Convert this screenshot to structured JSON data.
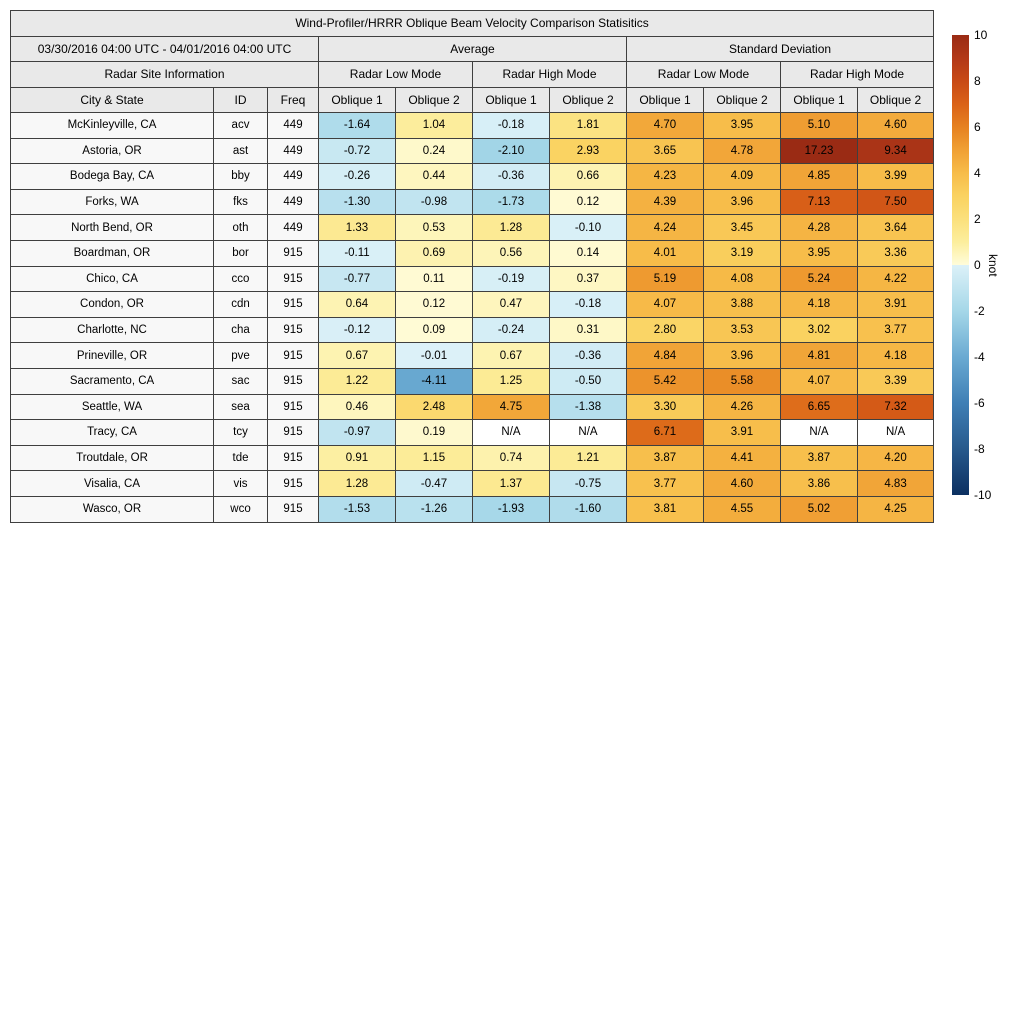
{
  "title": "Wind-Profiler/HRRR Oblique Beam Velocity Comparison Statisitics",
  "header": {
    "date_range": "03/30/2016 04:00 UTC - 04/01/2016 04:00 UTC",
    "avg_group": "Average",
    "std_group": "Standard Deviation",
    "site_info": "Radar Site Information",
    "mode_headers": [
      "Radar Low Mode",
      "Radar High Mode",
      "Radar Low Mode",
      "Radar High Mode"
    ],
    "col_headers": [
      "City & State",
      "ID",
      "Freq",
      "Oblique 1",
      "Oblique 2",
      "Oblique 1",
      "Oblique 2",
      "Oblique 1",
      "Oblique 2",
      "Oblique 1",
      "Oblique 2"
    ]
  },
  "colorbar": {
    "label": "knot",
    "min": -10,
    "max": 10,
    "ticks": [
      "10",
      "8",
      "6",
      "4",
      "2",
      "0",
      "-2",
      "-4",
      "-6",
      "-8",
      "-10"
    ],
    "stops": [
      {
        "v": -10,
        "c": "#0c3061"
      },
      {
        "v": -8,
        "c": "#27598c"
      },
      {
        "v": -6,
        "c": "#3f7fb5"
      },
      {
        "v": -4,
        "c": "#6aaad2"
      },
      {
        "v": -2,
        "c": "#a5d7e8"
      },
      {
        "v": -0.001,
        "c": "#dcf1f8"
      },
      {
        "v": 0,
        "c": "#fffcda"
      },
      {
        "v": 1,
        "c": "#fcee9d"
      },
      {
        "v": 2,
        "c": "#fbe07c"
      },
      {
        "v": 3,
        "c": "#fad260"
      },
      {
        "v": 4,
        "c": "#f7bc49"
      },
      {
        "v": 5,
        "c": "#f0a034"
      },
      {
        "v": 6,
        "c": "#e68120"
      },
      {
        "v": 7,
        "c": "#da6218"
      },
      {
        "v": 8,
        "c": "#c84a16"
      },
      {
        "v": 9,
        "c": "#b23818"
      },
      {
        "v": 10,
        "c": "#9a2b14"
      }
    ],
    "na_color": "#ffffff"
  },
  "chart_data": {
    "type": "heatmap",
    "title": "Wind-Profiler/HRRR Oblique Beam Velocity Comparison Statisitics",
    "value_unit": "knot",
    "value_range": [
      -10,
      10
    ],
    "column_groups": [
      "Average / Radar Low Mode",
      "Average / Radar High Mode",
      "Standard Deviation / Radar Low Mode",
      "Standard Deviation / Radar High Mode"
    ],
    "value_columns": [
      "Avg Low Oblique 1",
      "Avg Low Oblique 2",
      "Avg High Oblique 1",
      "Avg High Oblique 2",
      "SD Low Oblique 1",
      "SD Low Oblique 2",
      "SD High Oblique 1",
      "SD High Oblique 2"
    ],
    "rows": [
      {
        "city": "McKinleyville, CA",
        "id": "acv",
        "freq": "449",
        "values": [
          "-1.64",
          "1.04",
          "-0.18",
          "1.81",
          "4.70",
          "3.95",
          "5.10",
          "4.60"
        ]
      },
      {
        "city": "Astoria, OR",
        "id": "ast",
        "freq": "449",
        "values": [
          "-0.72",
          "0.24",
          "-2.10",
          "2.93",
          "3.65",
          "4.78",
          "17.23",
          "9.34"
        ]
      },
      {
        "city": "Bodega Bay, CA",
        "id": "bby",
        "freq": "449",
        "values": [
          "-0.26",
          "0.44",
          "-0.36",
          "0.66",
          "4.23",
          "4.09",
          "4.85",
          "3.99"
        ]
      },
      {
        "city": "Forks, WA",
        "id": "fks",
        "freq": "449",
        "values": [
          "-1.30",
          "-0.98",
          "-1.73",
          "0.12",
          "4.39",
          "3.96",
          "7.13",
          "7.50"
        ]
      },
      {
        "city": "North Bend, OR",
        "id": "oth",
        "freq": "449",
        "values": [
          "1.33",
          "0.53",
          "1.28",
          "-0.10",
          "4.24",
          "3.45",
          "4.28",
          "3.64"
        ]
      },
      {
        "city": "Boardman, OR",
        "id": "bor",
        "freq": "915",
        "values": [
          "-0.11",
          "0.69",
          "0.56",
          "0.14",
          "4.01",
          "3.19",
          "3.95",
          "3.36"
        ]
      },
      {
        "city": "Chico, CA",
        "id": "cco",
        "freq": "915",
        "values": [
          "-0.77",
          "0.11",
          "-0.19",
          "0.37",
          "5.19",
          "4.08",
          "5.24",
          "4.22"
        ]
      },
      {
        "city": "Condon, OR",
        "id": "cdn",
        "freq": "915",
        "values": [
          "0.64",
          "0.12",
          "0.47",
          "-0.18",
          "4.07",
          "3.88",
          "4.18",
          "3.91"
        ]
      },
      {
        "city": "Charlotte, NC",
        "id": "cha",
        "freq": "915",
        "values": [
          "-0.12",
          "0.09",
          "-0.24",
          "0.31",
          "2.80",
          "3.53",
          "3.02",
          "3.77"
        ]
      },
      {
        "city": "Prineville, OR",
        "id": "pve",
        "freq": "915",
        "values": [
          "0.67",
          "-0.01",
          "0.67",
          "-0.36",
          "4.84",
          "3.96",
          "4.81",
          "4.18"
        ]
      },
      {
        "city": "Sacramento, CA",
        "id": "sac",
        "freq": "915",
        "values": [
          "1.22",
          "-4.11",
          "1.25",
          "-0.50",
          "5.42",
          "5.58",
          "4.07",
          "3.39"
        ]
      },
      {
        "city": "Seattle, WA",
        "id": "sea",
        "freq": "915",
        "values": [
          "0.46",
          "2.48",
          "4.75",
          "-1.38",
          "3.30",
          "4.26",
          "6.65",
          "7.32"
        ]
      },
      {
        "city": "Tracy, CA",
        "id": "tcy",
        "freq": "915",
        "values": [
          "-0.97",
          "0.19",
          "N/A",
          "N/A",
          "6.71",
          "3.91",
          "N/A",
          "N/A"
        ]
      },
      {
        "city": "Troutdale, OR",
        "id": "tde",
        "freq": "915",
        "values": [
          "0.91",
          "1.15",
          "0.74",
          "1.21",
          "3.87",
          "4.41",
          "3.87",
          "4.20"
        ]
      },
      {
        "city": "Visalia, CA",
        "id": "vis",
        "freq": "915",
        "values": [
          "1.28",
          "-0.47",
          "1.37",
          "-0.75",
          "3.77",
          "4.60",
          "3.86",
          "4.83"
        ]
      },
      {
        "city": "Wasco, OR",
        "id": "wco",
        "freq": "915",
        "values": [
          "-1.53",
          "-1.26",
          "-1.93",
          "-1.60",
          "3.81",
          "4.55",
          "5.02",
          "4.25"
        ]
      }
    ]
  }
}
